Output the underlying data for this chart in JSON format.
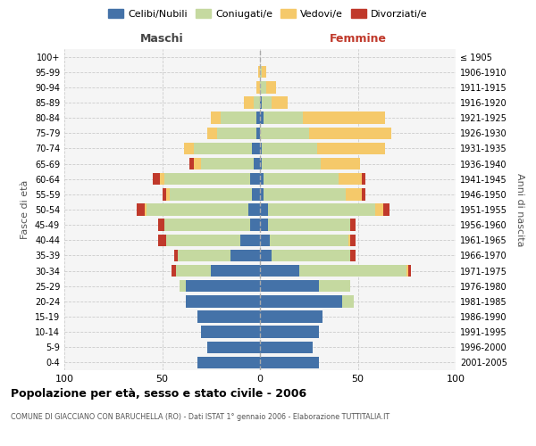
{
  "age_groups": [
    "0-4",
    "5-9",
    "10-14",
    "15-19",
    "20-24",
    "25-29",
    "30-34",
    "35-39",
    "40-44",
    "45-49",
    "50-54",
    "55-59",
    "60-64",
    "65-69",
    "70-74",
    "75-79",
    "80-84",
    "85-89",
    "90-94",
    "95-99",
    "100+"
  ],
  "birth_years": [
    "2001-2005",
    "1996-2000",
    "1991-1995",
    "1986-1990",
    "1981-1985",
    "1976-1980",
    "1971-1975",
    "1966-1970",
    "1961-1965",
    "1956-1960",
    "1951-1955",
    "1946-1950",
    "1941-1945",
    "1936-1940",
    "1931-1935",
    "1926-1930",
    "1921-1925",
    "1916-1920",
    "1911-1915",
    "1906-1910",
    "≤ 1905"
  ],
  "colors": {
    "celibi": "#4472a8",
    "coniugati": "#c5d9a0",
    "vedovi": "#f5c96a",
    "divorziati": "#c0392b"
  },
  "maschi": {
    "celibi": [
      32,
      27,
      30,
      32,
      38,
      38,
      25,
      15,
      10,
      5,
      6,
      4,
      5,
      3,
      4,
      2,
      2,
      0,
      0,
      0,
      0
    ],
    "coniugati": [
      0,
      0,
      0,
      0,
      0,
      3,
      18,
      27,
      38,
      44,
      52,
      42,
      44,
      27,
      30,
      20,
      18,
      3,
      0,
      0,
      0
    ],
    "vedovi": [
      0,
      0,
      0,
      0,
      0,
      0,
      0,
      0,
      0,
      0,
      1,
      2,
      2,
      4,
      5,
      5,
      5,
      5,
      2,
      1,
      0
    ],
    "divorziati": [
      0,
      0,
      0,
      0,
      0,
      0,
      2,
      2,
      4,
      3,
      4,
      2,
      4,
      2,
      0,
      0,
      0,
      0,
      0,
      0,
      0
    ]
  },
  "femmine": {
    "celibi": [
      30,
      27,
      30,
      32,
      42,
      30,
      20,
      6,
      5,
      4,
      4,
      2,
      2,
      1,
      1,
      0,
      2,
      1,
      0,
      0,
      0
    ],
    "coniugati": [
      0,
      0,
      0,
      0,
      6,
      16,
      55,
      40,
      40,
      42,
      55,
      42,
      38,
      30,
      28,
      25,
      20,
      5,
      3,
      1,
      0
    ],
    "vedovi": [
      0,
      0,
      0,
      0,
      0,
      0,
      1,
      0,
      1,
      0,
      4,
      8,
      12,
      20,
      35,
      42,
      42,
      8,
      5,
      2,
      0
    ],
    "divorziati": [
      0,
      0,
      0,
      0,
      0,
      0,
      1,
      3,
      3,
      3,
      3,
      2,
      2,
      0,
      0,
      0,
      0,
      0,
      0,
      0,
      0
    ]
  },
  "xlim": 100,
  "title": "Popolazione per età, sesso e stato civile - 2006",
  "subtitle": "COMUNE DI GIACCIANO CON BARUCHELLA (RO) - Dati ISTAT 1° gennaio 2006 - Elaborazione TUTTITALIA.IT",
  "xlabel_left": "Maschi",
  "xlabel_right": "Femmine",
  "ylabel_left": "Fasce di età",
  "ylabel_right": "Anni di nascita",
  "legend_labels": [
    "Celibi/Nubili",
    "Coniugati/e",
    "Vedovi/e",
    "Divorziati/e"
  ],
  "bg_color": "#f5f5f5",
  "grid_color": "#cccccc"
}
